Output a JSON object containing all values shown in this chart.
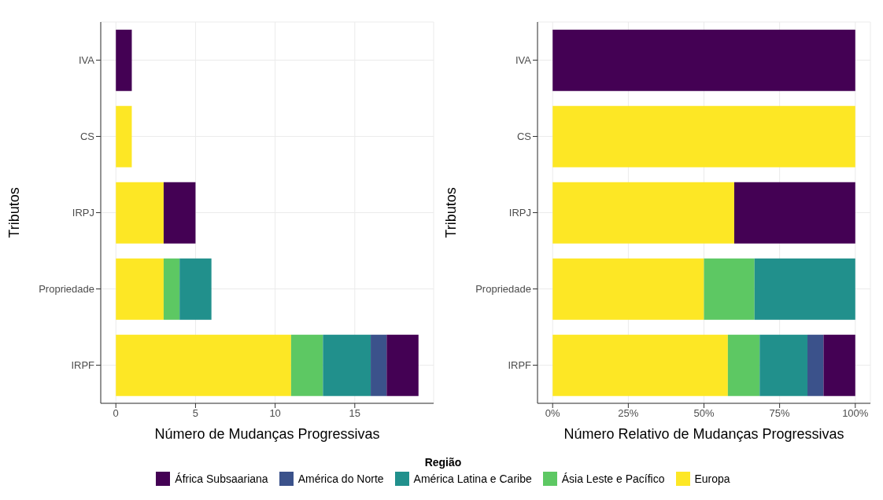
{
  "chart_data": [
    {
      "type": "bar",
      "orientation": "horizontal",
      "stacked": true,
      "grid": true,
      "legend": "bottom",
      "legend_title": "Região",
      "xlabel": "Número de Mudanças Progressivas",
      "ylabel": "Tributos",
      "categories": [
        "IVA",
        "CS",
        "IRPJ",
        "Propriedade",
        "IRPF"
      ],
      "xlim": [
        -0.95,
        19.95
      ],
      "xticks": [
        0,
        5,
        10,
        15
      ],
      "series": [
        {
          "name": "Europa",
          "color": "#fde725",
          "values": [
            null,
            1,
            3,
            3,
            11
          ]
        },
        {
          "name": "Ásia Leste e Pacífico",
          "color": "#5dc863",
          "values": [
            null,
            null,
            null,
            1,
            2
          ]
        },
        {
          "name": "América Latina e Caribe",
          "color": "#21908c",
          "values": [
            null,
            null,
            null,
            2,
            3
          ]
        },
        {
          "name": "América do Norte",
          "color": "#3b528b",
          "values": [
            null,
            null,
            null,
            null,
            1
          ]
        },
        {
          "name": "África Subsaariana",
          "color": "#440154",
          "values": [
            1,
            null,
            2,
            null,
            2
          ]
        }
      ]
    },
    {
      "type": "bar",
      "orientation": "horizontal",
      "stacked": true,
      "grid": true,
      "xlabel": "Número Relativo de Mudanças Progressivas",
      "ylabel": "Tributos",
      "categories": [
        "IVA",
        "CS",
        "IRPJ",
        "Propriedade",
        "IRPF"
      ],
      "xlim": [
        -5,
        105
      ],
      "xticks": [
        {
          "value": 0,
          "label": "0%"
        },
        {
          "value": 25,
          "label": "25%"
        },
        {
          "value": 50,
          "label": "50%"
        },
        {
          "value": 75,
          "label": "75%"
        },
        {
          "value": 100,
          "label": "100%"
        }
      ],
      "series": [
        {
          "color": "#fde725",
          "values": [
            null,
            100,
            60,
            50,
            57.9
          ]
        },
        {
          "color": "#5dc863",
          "values": [
            null,
            null,
            null,
            16.7,
            10.5
          ]
        },
        {
          "color": "#21908c",
          "values": [
            null,
            null,
            null,
            33.3,
            15.8
          ]
        },
        {
          "color": "#3b528b",
          "values": [
            null,
            null,
            null,
            null,
            5.3
          ]
        },
        {
          "color": "#440154",
          "values": [
            100,
            null,
            40,
            null,
            10.5
          ]
        }
      ]
    }
  ]
}
